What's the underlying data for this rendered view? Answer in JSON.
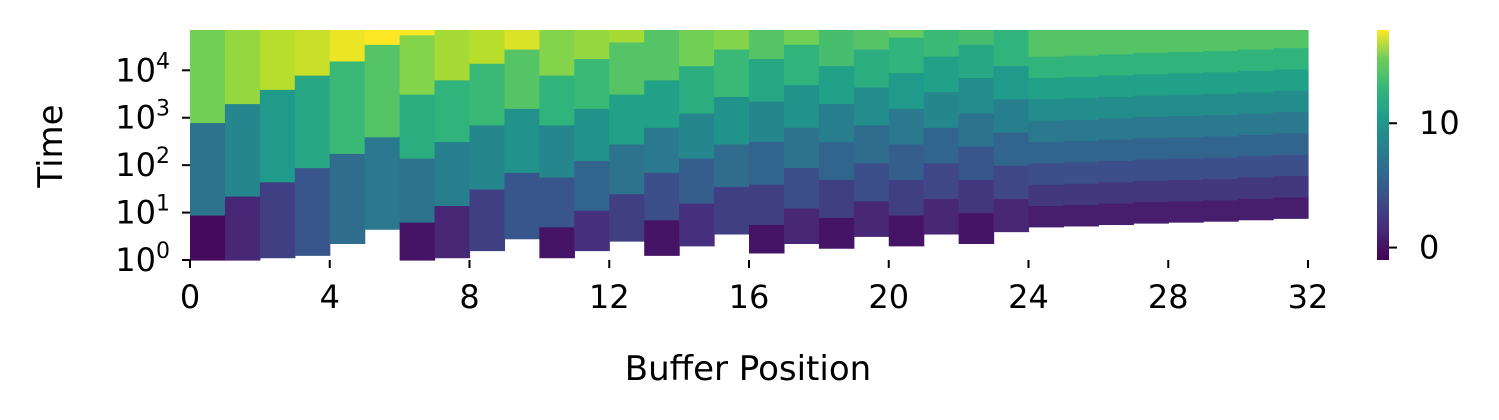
{
  "chart_data": {
    "type": "heatmap",
    "title": "",
    "xlabel": "Buffer Position",
    "ylabel": "Time",
    "x_range": [
      0,
      32
    ],
    "x_ticks": [
      0,
      4,
      8,
      12,
      16,
      20,
      24,
      28,
      32
    ],
    "y_scale": "log",
    "y_range_exponent": [
      0,
      4.85
    ],
    "y_ticks": [
      {
        "base": "10",
        "exp": "0",
        "value": 1
      },
      {
        "base": "10",
        "exp": "1",
        "value": 10
      },
      {
        "base": "10",
        "exp": "2",
        "value": 100
      },
      {
        "base": "10",
        "exp": "3",
        "value": 1000
      },
      {
        "base": "10",
        "exp": "4",
        "value": 10000
      }
    ],
    "colorbar": {
      "colormap": "viridis",
      "range": [
        -1,
        17.5
      ],
      "ticks": [
        0,
        10
      ],
      "tick_labels": [
        "0",
        "10"
      ]
    },
    "grid": false,
    "legend": "none",
    "description_of_cells": "Each buffer position column is split into vertical bands over log-scaled time; bands rise to higher values with time; start time of each column increases with position.",
    "columns": [
      {
        "pos": 0,
        "start_exp": 0.0,
        "bands": [
          [
            0.0,
            0.95,
            -0.5
          ],
          [
            0.95,
            2.9,
            6.0
          ],
          [
            2.9,
            4.85,
            13.5
          ]
        ]
      },
      {
        "pos": 1,
        "start_exp": 0.0,
        "bands": [
          [
            0.0,
            1.35,
            1.0
          ],
          [
            1.35,
            3.3,
            7.5
          ],
          [
            3.3,
            4.85,
            14.5
          ]
        ]
      },
      {
        "pos": 2,
        "start_exp": 0.05,
        "bands": [
          [
            0.05,
            1.65,
            2.5
          ],
          [
            1.65,
            3.6,
            9.0
          ],
          [
            3.6,
            4.85,
            15.5
          ]
        ]
      },
      {
        "pos": 3,
        "start_exp": 0.1,
        "bands": [
          [
            0.1,
            1.95,
            4.0
          ],
          [
            1.95,
            3.9,
            10.0
          ],
          [
            3.9,
            4.85,
            16.0
          ]
        ]
      },
      {
        "pos": 4,
        "start_exp": 0.35,
        "bands": [
          [
            0.35,
            2.25,
            5.5
          ],
          [
            2.25,
            4.2,
            11.5
          ],
          [
            4.2,
            4.85,
            17.0
          ]
        ]
      },
      {
        "pos": 5,
        "start_exp": 0.65,
        "bands": [
          [
            0.65,
            2.6,
            6.5
          ],
          [
            2.6,
            4.55,
            12.5
          ],
          [
            4.55,
            4.85,
            18.0
          ]
        ]
      },
      {
        "pos": 6,
        "start_exp": 0.0,
        "bands": [
          [
            0.0,
            0.8,
            0.0
          ],
          [
            0.8,
            2.15,
            6.0
          ],
          [
            2.15,
            3.5,
            10.5
          ],
          [
            3.5,
            4.75,
            14.0
          ],
          [
            4.75,
            4.85,
            17.5
          ]
        ]
      },
      {
        "pos": 7,
        "start_exp": 0.05,
        "bands": [
          [
            0.05,
            1.15,
            1.0
          ],
          [
            1.15,
            2.5,
            7.0
          ],
          [
            2.5,
            3.8,
            11.0
          ],
          [
            3.8,
            4.85,
            15.0
          ]
        ]
      },
      {
        "pos": 8,
        "start_exp": 0.2,
        "bands": [
          [
            0.2,
            1.5,
            2.5
          ],
          [
            1.5,
            2.85,
            7.5
          ],
          [
            2.85,
            4.15,
            11.5
          ],
          [
            4.15,
            4.85,
            15.5
          ]
        ]
      },
      {
        "pos": 9,
        "start_exp": 0.45,
        "bands": [
          [
            0.45,
            1.85,
            4.0
          ],
          [
            1.85,
            3.2,
            8.5
          ],
          [
            3.2,
            4.45,
            12.5
          ],
          [
            4.45,
            4.85,
            16.5
          ]
        ]
      },
      {
        "pos": 10,
        "start_exp": 0.05,
        "bands": [
          [
            0.05,
            0.7,
            0.0
          ],
          [
            0.7,
            1.75,
            4.0
          ],
          [
            1.75,
            2.85,
            7.5
          ],
          [
            2.85,
            3.9,
            11.0
          ],
          [
            3.9,
            4.85,
            14.0
          ]
        ]
      },
      {
        "pos": 11,
        "start_exp": 0.2,
        "bands": [
          [
            0.2,
            1.05,
            1.5
          ],
          [
            1.05,
            2.1,
            5.0
          ],
          [
            2.1,
            3.2,
            8.5
          ],
          [
            3.2,
            4.25,
            11.5
          ],
          [
            4.25,
            4.85,
            14.5
          ]
        ]
      },
      {
        "pos": 12,
        "start_exp": 0.4,
        "bands": [
          [
            0.4,
            1.4,
            2.5
          ],
          [
            1.4,
            2.45,
            6.0
          ],
          [
            2.45,
            3.5,
            9.5
          ],
          [
            3.5,
            4.6,
            12.5
          ],
          [
            4.6,
            4.85,
            15.0
          ]
        ]
      },
      {
        "pos": 13,
        "start_exp": 0.1,
        "bands": [
          [
            0.1,
            0.85,
            0.0
          ],
          [
            0.85,
            1.85,
            3.5
          ],
          [
            1.85,
            2.8,
            6.5
          ],
          [
            2.8,
            3.8,
            9.5
          ],
          [
            3.8,
            4.85,
            12.5
          ]
        ]
      },
      {
        "pos": 14,
        "start_exp": 0.3,
        "bands": [
          [
            0.3,
            1.2,
            1.5
          ],
          [
            1.2,
            2.15,
            4.5
          ],
          [
            2.15,
            3.1,
            7.5
          ],
          [
            3.1,
            4.1,
            10.5
          ],
          [
            4.1,
            4.85,
            13.5
          ]
        ]
      },
      {
        "pos": 15,
        "start_exp": 0.55,
        "bands": [
          [
            0.55,
            1.55,
            2.5
          ],
          [
            1.55,
            2.45,
            5.5
          ],
          [
            2.45,
            3.45,
            8.5
          ],
          [
            3.45,
            4.45,
            11.5
          ],
          [
            4.45,
            4.85,
            14.0
          ]
        ]
      },
      {
        "pos": 16,
        "start_exp": 0.15,
        "bands": [
          [
            0.15,
            0.75,
            0.0
          ],
          [
            0.75,
            1.6,
            2.5
          ],
          [
            1.6,
            2.5,
            5.0
          ],
          [
            2.5,
            3.35,
            7.5
          ],
          [
            3.35,
            4.25,
            10.0
          ],
          [
            4.25,
            4.85,
            12.5
          ]
        ]
      },
      {
        "pos": 17,
        "start_exp": 0.35,
        "bands": [
          [
            0.35,
            1.1,
            1.0
          ],
          [
            1.1,
            1.95,
            3.5
          ],
          [
            1.95,
            2.8,
            6.0
          ],
          [
            2.8,
            3.7,
            8.5
          ],
          [
            3.7,
            4.55,
            11.0
          ],
          [
            4.55,
            4.85,
            13.5
          ]
        ]
      },
      {
        "pos": 18,
        "start_exp": 0.25,
        "bands": [
          [
            0.25,
            0.9,
            0.0
          ],
          [
            0.9,
            1.7,
            2.5
          ],
          [
            1.7,
            2.5,
            5.0
          ],
          [
            2.5,
            3.3,
            7.0
          ],
          [
            3.3,
            4.1,
            9.5
          ],
          [
            4.1,
            4.85,
            12.0
          ]
        ]
      },
      {
        "pos": 19,
        "start_exp": 0.5,
        "bands": [
          [
            0.5,
            1.25,
            1.0
          ],
          [
            1.25,
            2.05,
            3.5
          ],
          [
            2.05,
            2.85,
            5.5
          ],
          [
            2.85,
            3.65,
            8.0
          ],
          [
            3.65,
            4.45,
            10.5
          ],
          [
            4.45,
            4.85,
            12.5
          ]
        ]
      },
      {
        "pos": 20,
        "start_exp": 0.3,
        "bands": [
          [
            0.3,
            0.95,
            0.0
          ],
          [
            0.95,
            1.7,
            2.5
          ],
          [
            1.7,
            2.45,
            4.5
          ],
          [
            2.45,
            3.2,
            6.5
          ],
          [
            3.2,
            3.95,
            9.0
          ],
          [
            3.95,
            4.7,
            11.0
          ],
          [
            4.7,
            4.85,
            13.0
          ]
        ]
      },
      {
        "pos": 21,
        "start_exp": 0.55,
        "bands": [
          [
            0.55,
            1.3,
            1.0
          ],
          [
            1.3,
            2.05,
            3.0
          ],
          [
            2.05,
            2.8,
            5.0
          ],
          [
            2.8,
            3.55,
            7.5
          ],
          [
            3.55,
            4.3,
            9.5
          ],
          [
            4.3,
            4.85,
            11.5
          ]
        ]
      },
      {
        "pos": 22,
        "start_exp": 0.35,
        "bands": [
          [
            0.35,
            1.0,
            0.0
          ],
          [
            1.0,
            1.7,
            2.0
          ],
          [
            1.7,
            2.4,
            4.0
          ],
          [
            2.4,
            3.1,
            6.0
          ],
          [
            3.1,
            3.85,
            8.0
          ],
          [
            3.85,
            4.55,
            10.0
          ],
          [
            4.55,
            4.85,
            12.0
          ]
        ]
      },
      {
        "pos": 23,
        "start_exp": 0.6,
        "bands": [
          [
            0.6,
            1.3,
            1.0
          ],
          [
            1.3,
            2.0,
            3.0
          ],
          [
            2.0,
            2.7,
            5.0
          ],
          [
            2.7,
            3.4,
            7.0
          ],
          [
            3.4,
            4.1,
            9.0
          ],
          [
            4.1,
            4.85,
            11.0
          ]
        ]
      },
      {
        "pos": 24,
        "start_exp": 0.7,
        "bands": [
          [
            0.7,
            1.15,
            0.5
          ],
          [
            1.15,
            1.6,
            2.0
          ],
          [
            1.6,
            2.05,
            3.5
          ],
          [
            2.05,
            2.5,
            5.0
          ],
          [
            2.5,
            2.95,
            6.5
          ],
          [
            2.95,
            3.4,
            8.0
          ],
          [
            3.4,
            3.85,
            9.5
          ],
          [
            3.85,
            4.3,
            11.0
          ],
          [
            4.3,
            4.85,
            12.5
          ]
        ]
      },
      {
        "pos": 25,
        "start_exp": 0.72,
        "bands": [
          [
            0.72,
            1.17,
            0.5
          ],
          [
            1.17,
            1.62,
            2.0
          ],
          [
            1.62,
            2.07,
            3.5
          ],
          [
            2.07,
            2.52,
            5.0
          ],
          [
            2.52,
            2.97,
            6.5
          ],
          [
            2.97,
            3.42,
            8.0
          ],
          [
            3.42,
            3.87,
            9.5
          ],
          [
            3.87,
            4.32,
            11.0
          ],
          [
            4.32,
            4.85,
            12.5
          ]
        ]
      },
      {
        "pos": 26,
        "start_exp": 0.75,
        "bands": [
          [
            0.75,
            1.2,
            0.5
          ],
          [
            1.2,
            1.65,
            2.0
          ],
          [
            1.65,
            2.1,
            3.5
          ],
          [
            2.1,
            2.55,
            5.0
          ],
          [
            2.55,
            3.0,
            6.5
          ],
          [
            3.0,
            3.45,
            8.0
          ],
          [
            3.45,
            3.9,
            9.5
          ],
          [
            3.9,
            4.35,
            11.0
          ],
          [
            4.35,
            4.85,
            12.5
          ]
        ]
      },
      {
        "pos": 27,
        "start_exp": 0.78,
        "bands": [
          [
            0.78,
            1.23,
            0.5
          ],
          [
            1.23,
            1.68,
            2.0
          ],
          [
            1.68,
            2.13,
            3.5
          ],
          [
            2.13,
            2.58,
            5.0
          ],
          [
            2.58,
            3.03,
            6.5
          ],
          [
            3.03,
            3.48,
            8.0
          ],
          [
            3.48,
            3.93,
            9.5
          ],
          [
            3.93,
            4.38,
            11.0
          ],
          [
            4.38,
            4.85,
            12.5
          ]
        ]
      },
      {
        "pos": 28,
        "start_exp": 0.8,
        "bands": [
          [
            0.8,
            1.25,
            0.5
          ],
          [
            1.25,
            1.7,
            2.0
          ],
          [
            1.7,
            2.15,
            3.5
          ],
          [
            2.15,
            2.6,
            5.0
          ],
          [
            2.6,
            3.05,
            6.5
          ],
          [
            3.05,
            3.5,
            8.0
          ],
          [
            3.5,
            3.95,
            9.5
          ],
          [
            3.95,
            4.4,
            11.0
          ],
          [
            4.4,
            4.85,
            12.5
          ]
        ]
      },
      {
        "pos": 29,
        "start_exp": 0.82,
        "bands": [
          [
            0.82,
            1.27,
            0.5
          ],
          [
            1.27,
            1.72,
            2.0
          ],
          [
            1.72,
            2.17,
            3.5
          ],
          [
            2.17,
            2.62,
            5.0
          ],
          [
            2.62,
            3.07,
            6.5
          ],
          [
            3.07,
            3.52,
            8.0
          ],
          [
            3.52,
            3.97,
            9.5
          ],
          [
            3.97,
            4.42,
            11.0
          ],
          [
            4.42,
            4.85,
            12.5
          ]
        ]
      },
      {
        "pos": 30,
        "start_exp": 0.85,
        "bands": [
          [
            0.85,
            1.3,
            0.5
          ],
          [
            1.3,
            1.75,
            2.0
          ],
          [
            1.75,
            2.2,
            3.5
          ],
          [
            2.2,
            2.65,
            5.0
          ],
          [
            2.65,
            3.1,
            6.5
          ],
          [
            3.1,
            3.55,
            8.0
          ],
          [
            3.55,
            4.0,
            9.5
          ],
          [
            4.0,
            4.45,
            11.0
          ],
          [
            4.45,
            4.85,
            12.5
          ]
        ]
      },
      {
        "pos": 31,
        "start_exp": 0.88,
        "bands": [
          [
            0.88,
            1.33,
            0.5
          ],
          [
            1.33,
            1.78,
            2.0
          ],
          [
            1.78,
            2.23,
            3.5
          ],
          [
            2.23,
            2.68,
            5.0
          ],
          [
            2.68,
            3.13,
            6.5
          ],
          [
            3.13,
            3.58,
            8.0
          ],
          [
            3.58,
            4.03,
            9.5
          ],
          [
            4.03,
            4.48,
            11.0
          ],
          [
            4.48,
            4.85,
            12.5
          ]
        ]
      }
    ]
  }
}
